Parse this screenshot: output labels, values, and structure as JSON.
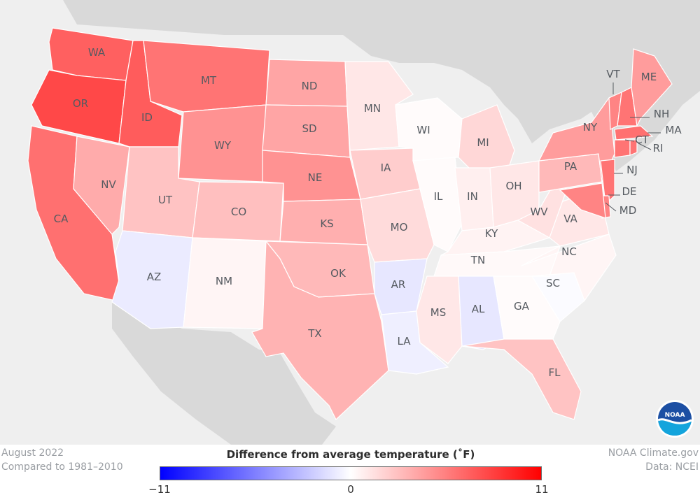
{
  "map": {
    "states": [
      {
        "id": "WA",
        "tone": 0.8
      },
      {
        "id": "OR",
        "tone": 0.92
      },
      {
        "id": "CA",
        "tone": 0.72
      },
      {
        "id": "NV",
        "tone": 0.42
      },
      {
        "id": "ID",
        "tone": 0.82
      },
      {
        "id": "MT",
        "tone": 0.7
      },
      {
        "id": "WY",
        "tone": 0.55
      },
      {
        "id": "UT",
        "tone": 0.3
      },
      {
        "id": "AZ",
        "tone": -0.1
      },
      {
        "id": "CO",
        "tone": 0.32
      },
      {
        "id": "NM",
        "tone": 0.05
      },
      {
        "id": "ND",
        "tone": 0.45
      },
      {
        "id": "SD",
        "tone": 0.45
      },
      {
        "id": "NE",
        "tone": 0.55
      },
      {
        "id": "KS",
        "tone": 0.4
      },
      {
        "id": "OK",
        "tone": 0.35
      },
      {
        "id": "TX",
        "tone": 0.38
      },
      {
        "id": "MN",
        "tone": 0.12
      },
      {
        "id": "IA",
        "tone": 0.25
      },
      {
        "id": "MO",
        "tone": 0.18
      },
      {
        "id": "AR",
        "tone": -0.12
      },
      {
        "id": "LA",
        "tone": -0.08
      },
      {
        "id": "WI",
        "tone": 0.02
      },
      {
        "id": "IL",
        "tone": 0.02
      },
      {
        "id": "MI",
        "tone": 0.2
      },
      {
        "id": "IN",
        "tone": 0.08
      },
      {
        "id": "OH",
        "tone": 0.12
      },
      {
        "id": "KY",
        "tone": 0.06
      },
      {
        "id": "TN",
        "tone": 0.03
      },
      {
        "id": "MS",
        "tone": 0.12
      },
      {
        "id": "AL",
        "tone": -0.12
      },
      {
        "id": "GA",
        "tone": 0.02
      },
      {
        "id": "FL",
        "tone": 0.3
      },
      {
        "id": "SC",
        "tone": -0.02
      },
      {
        "id": "NC",
        "tone": 0.05
      },
      {
        "id": "VA",
        "tone": 0.12
      },
      {
        "id": "WV",
        "tone": 0.15
      },
      {
        "id": "PA",
        "tone": 0.35
      },
      {
        "id": "NY",
        "tone": 0.5
      },
      {
        "id": "VT",
        "tone": 0.62
      },
      {
        "id": "NH",
        "tone": 0.7
      },
      {
        "id": "ME",
        "tone": 0.5
      },
      {
        "id": "MA",
        "tone": 0.72
      },
      {
        "id": "CT",
        "tone": 0.7
      },
      {
        "id": "RI",
        "tone": 0.7
      },
      {
        "id": "NJ",
        "tone": 0.7
      },
      {
        "id": "DE",
        "tone": 0.62
      },
      {
        "id": "MD",
        "tone": 0.62
      }
    ],
    "labels": [
      {
        "text": "WA"
      },
      {
        "text": "OR"
      },
      {
        "text": "ID"
      },
      {
        "text": "MT"
      },
      {
        "text": "WY"
      },
      {
        "text": "ND"
      },
      {
        "text": "SD"
      },
      {
        "text": "NE"
      },
      {
        "text": "NV"
      },
      {
        "text": "UT"
      },
      {
        "text": "CO"
      },
      {
        "text": "KS"
      },
      {
        "text": "CA"
      },
      {
        "text": "AZ"
      },
      {
        "text": "NM"
      },
      {
        "text": "OK"
      },
      {
        "text": "TX"
      },
      {
        "text": "MN"
      },
      {
        "text": "IA"
      },
      {
        "text": "MO"
      },
      {
        "text": "AR"
      },
      {
        "text": "LA"
      },
      {
        "text": "WI"
      },
      {
        "text": "IL"
      },
      {
        "text": "MI"
      },
      {
        "text": "IN"
      },
      {
        "text": "OH"
      },
      {
        "text": "KY"
      },
      {
        "text": "TN"
      },
      {
        "text": "MS"
      },
      {
        "text": "AL"
      },
      {
        "text": "GA"
      },
      {
        "text": "SC"
      },
      {
        "text": "NC"
      },
      {
        "text": "FL"
      },
      {
        "text": "WV"
      },
      {
        "text": "VA"
      },
      {
        "text": "PA"
      },
      {
        "text": "NY"
      },
      {
        "text": "VT"
      },
      {
        "text": "ME"
      },
      {
        "text": "NH"
      },
      {
        "text": "MA"
      },
      {
        "text": "RI"
      },
      {
        "text": "CT"
      },
      {
        "text": "NJ"
      },
      {
        "text": "DE"
      },
      {
        "text": "MD"
      }
    ]
  },
  "footer": {
    "period": "August 2022",
    "baseline": "Compared to 1981–2010",
    "source": "NOAA Climate.gov",
    "data": "Data: NCEI"
  },
  "legend": {
    "title": "Difference from average temperature (˚F)",
    "ticks": [
      "−11",
      "0",
      "11"
    ],
    "min": -11,
    "max": 11,
    "colors": {
      "cold": "#0000ff",
      "neutral": "#ffffff",
      "warm": "#ff0000"
    }
  },
  "logo": {
    "text": "NOAA",
    "icon": "noaa-logo-icon"
  }
}
